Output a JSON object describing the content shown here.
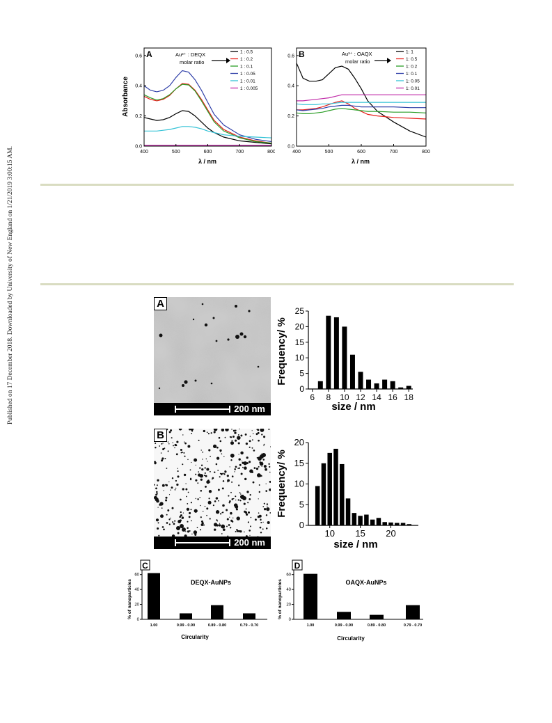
{
  "sidebar": {
    "text": "Published on 17 December 2018. Downloaded by University of New England on 1/21/2019 3:00:15 AM."
  },
  "spectra": {
    "A": {
      "label": "A",
      "header_line1": "Au³⁺ : DEQX",
      "header_line2": "molar ratio",
      "ylabel": "Absorbance",
      "xlabel": "λ / nm"
    },
    "B": {
      "label": "B",
      "header_line1": "Au³⁺ : OAQX",
      "header_line2": "molar ratio",
      "xlabel": "λ / nm"
    }
  },
  "tem": {
    "A": {
      "label": "A",
      "scale": "200 nm"
    },
    "B": {
      "label": "B",
      "scale": "200 nm"
    }
  },
  "histograms": {
    "A": {
      "ylabel": "Frequency/ %",
      "xlabel": "size / nm"
    },
    "B": {
      "ylabel": "Frequency/ %",
      "xlabel": "size / nm"
    }
  },
  "circularity": {
    "C": {
      "label": "C",
      "title": "DEQX-AuNPs",
      "ylabel": "% of nanoparticles",
      "xlabel": "Circularity"
    },
    "D": {
      "label": "D",
      "title": "OAQX-AuNPs",
      "ylabel": "% of nanoparticles",
      "xlabel": "Circularity"
    }
  },
  "chart_data": [
    {
      "id": "A",
      "type": "line",
      "xlabel": "λ / nm",
      "ylabel": "Absorbance",
      "xlim": [
        400,
        800
      ],
      "ylim": [
        0,
        0.65
      ],
      "xticks": [
        400,
        500,
        600,
        700,
        800
      ],
      "yticks": [
        0.0,
        0.2,
        0.4,
        0.6
      ],
      "legend_position": "top-right",
      "x": [
        400,
        420,
        440,
        460,
        480,
        500,
        520,
        540,
        560,
        580,
        600,
        620,
        650,
        700,
        750,
        800
      ],
      "series": [
        {
          "name": "1 : 0.5",
          "color": "#000000",
          "values": [
            0.19,
            0.18,
            0.17,
            0.175,
            0.19,
            0.215,
            0.235,
            0.23,
            0.2,
            0.16,
            0.12,
            0.09,
            0.06,
            0.035,
            0.025,
            0.015
          ]
        },
        {
          "name": "1 : 0.2",
          "color": "#e8201c",
          "values": [
            0.33,
            0.31,
            0.3,
            0.31,
            0.335,
            0.38,
            0.415,
            0.41,
            0.37,
            0.31,
            0.24,
            0.17,
            0.11,
            0.06,
            0.035,
            0.02
          ]
        },
        {
          "name": "1 : 0.1",
          "color": "#2a9d26",
          "values": [
            0.34,
            0.32,
            0.305,
            0.315,
            0.34,
            0.38,
            0.41,
            0.405,
            0.365,
            0.3,
            0.23,
            0.16,
            0.1,
            0.055,
            0.03,
            0.02
          ]
        },
        {
          "name": "1 : 0.05",
          "color": "#2f3fa8",
          "values": [
            0.4,
            0.37,
            0.36,
            0.37,
            0.4,
            0.455,
            0.5,
            0.49,
            0.44,
            0.37,
            0.29,
            0.21,
            0.14,
            0.075,
            0.045,
            0.03
          ]
        },
        {
          "name": "1 : 0.01",
          "color": "#33c2d6",
          "values": [
            0.1,
            0.1,
            0.1,
            0.105,
            0.11,
            0.12,
            0.13,
            0.13,
            0.125,
            0.115,
            0.1,
            0.09,
            0.075,
            0.065,
            0.06,
            0.055
          ]
        },
        {
          "name": "1 : 0.005",
          "color": "#c02aa8",
          "values": [
            0.005,
            0.005,
            0.005,
            0.005,
            0.005,
            0.005,
            0.005,
            0.005,
            0.005,
            0.005,
            0.005,
            0.005,
            0.005,
            0.005,
            0.005,
            0.005
          ]
        }
      ]
    },
    {
      "id": "B",
      "type": "line",
      "xlabel": "λ / nm",
      "ylabel": "",
      "xlim": [
        400,
        800
      ],
      "ylim": [
        0,
        0.65
      ],
      "xticks": [
        400,
        500,
        600,
        700,
        800
      ],
      "yticks": [
        0.0,
        0.2,
        0.4,
        0.6
      ],
      "legend_position": "top-right",
      "x": [
        400,
        420,
        440,
        460,
        480,
        500,
        520,
        540,
        560,
        580,
        600,
        620,
        650,
        700,
        750,
        800
      ],
      "series": [
        {
          "name": "1: 1",
          "color": "#000000",
          "values": [
            0.55,
            0.45,
            0.43,
            0.43,
            0.44,
            0.48,
            0.52,
            0.53,
            0.51,
            0.45,
            0.38,
            0.3,
            0.23,
            0.16,
            0.1,
            0.06
          ]
        },
        {
          "name": "1: 0.5",
          "color": "#e8201c",
          "values": [
            0.24,
            0.24,
            0.245,
            0.25,
            0.26,
            0.275,
            0.29,
            0.3,
            0.28,
            0.25,
            0.23,
            0.21,
            0.2,
            0.19,
            0.185,
            0.18
          ]
        },
        {
          "name": "1: 0.2",
          "color": "#2a9d26",
          "values": [
            0.22,
            0.215,
            0.215,
            0.22,
            0.225,
            0.235,
            0.245,
            0.25,
            0.245,
            0.24,
            0.235,
            0.23,
            0.23,
            0.225,
            0.225,
            0.22
          ]
        },
        {
          "name": "1: 0.1",
          "color": "#2f3fa8",
          "values": [
            0.24,
            0.235,
            0.24,
            0.245,
            0.25,
            0.26,
            0.265,
            0.27,
            0.27,
            0.265,
            0.26,
            0.26,
            0.26,
            0.26,
            0.255,
            0.255
          ]
        },
        {
          "name": "1: 0.05",
          "color": "#33c2d6",
          "values": [
            0.28,
            0.275,
            0.275,
            0.275,
            0.28,
            0.28,
            0.285,
            0.29,
            0.29,
            0.29,
            0.29,
            0.29,
            0.29,
            0.29,
            0.29,
            0.29
          ]
        },
        {
          "name": "1: 0.01",
          "color": "#c02aa8",
          "values": [
            0.3,
            0.3,
            0.305,
            0.31,
            0.315,
            0.32,
            0.33,
            0.34,
            0.34,
            0.34,
            0.34,
            0.34,
            0.34,
            0.34,
            0.34,
            0.34
          ]
        }
      ]
    },
    {
      "id": "histA",
      "type": "bar",
      "xlabel": "size / nm",
      "ylabel": "Frequency/ %",
      "xlim": [
        5.5,
        18.5
      ],
      "ylim": [
        0,
        25
      ],
      "xticks": [
        6,
        8,
        10,
        12,
        14,
        16,
        18
      ],
      "yticks": [
        0,
        5,
        10,
        15,
        20,
        25
      ],
      "x": [
        7,
        8,
        9,
        10,
        11,
        12,
        13,
        14,
        15,
        16,
        17,
        18
      ],
      "values": [
        2.5,
        23.5,
        23,
        20,
        11,
        5.5,
        3,
        1.8,
        3,
        2.5,
        0.5,
        1
      ]
    },
    {
      "id": "histB",
      "type": "bar",
      "xlabel": "size / nm",
      "ylabel": "Frequency/ %",
      "xlim": [
        6.5,
        24.5
      ],
      "ylim": [
        0,
        20
      ],
      "xticks": [
        10,
        15,
        20
      ],
      "yticks": [
        0,
        5,
        10,
        15,
        20
      ],
      "x": [
        8,
        9,
        10,
        11,
        12,
        13,
        14,
        15,
        16,
        17,
        18,
        19,
        20,
        21,
        22,
        23
      ],
      "values": [
        9.5,
        15,
        17.5,
        18.5,
        14.8,
        6.5,
        3,
        2.3,
        2.6,
        1.4,
        1.8,
        0.8,
        0.7,
        0.6,
        0.6,
        0.3
      ]
    },
    {
      "id": "C",
      "type": "bar",
      "title": "DEQX-AuNPs",
      "xlabel": "Circularity",
      "ylabel": "% of nanoparticles",
      "ylim": [
        0,
        70
      ],
      "yticks": [
        0,
        20,
        40,
        60
      ],
      "categories": [
        "1.00",
        "0.99 - 0.90",
        "0.89 - 0.80",
        "0.79 - 0.70"
      ],
      "values": [
        62,
        8,
        19,
        8
      ]
    },
    {
      "id": "D",
      "type": "bar",
      "title": "OAQX-AuNPs",
      "xlabel": "Circularity",
      "ylabel": "% of nanoparticles",
      "ylim": [
        0,
        70
      ],
      "yticks": [
        0,
        20,
        40,
        60
      ],
      "categories": [
        "1.00",
        "0.99 - 0.90",
        "0.89 - 0.80",
        "0.79 - 0.70"
      ],
      "values": [
        61,
        10,
        6,
        19
      ]
    }
  ]
}
